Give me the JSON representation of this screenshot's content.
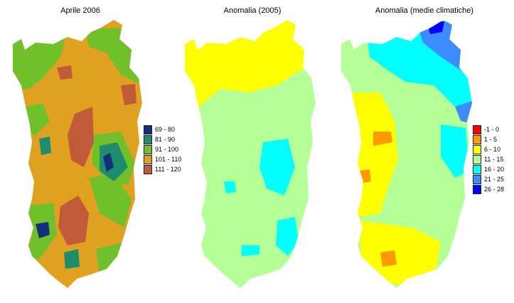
{
  "panels": [
    {
      "title": "Aprile 2006",
      "legend": [
        {
          "label": "69 - 80",
          "color": "#15307a"
        },
        {
          "label": "81 - 90",
          "color": "#1e8c6e"
        },
        {
          "label": "91 - 100",
          "color": "#6fc02a"
        },
        {
          "label": "101 - 110",
          "color": "#e0a020"
        },
        {
          "label": "111 - 120",
          "color": "#c05a38"
        }
      ]
    },
    {
      "title": "Anomalia (2005)",
      "legend": []
    },
    {
      "title": "Anomalia (medie climatiche)",
      "legend": [
        {
          "label": "-1 - 0",
          "color": "#ff0000"
        },
        {
          "label": "1 - 5",
          "color": "#ff9900"
        },
        {
          "label": "6 - 10",
          "color": "#ffff00"
        },
        {
          "label": "11 - 15",
          "color": "#b4ff96"
        },
        {
          "label": "16 - 20",
          "color": "#00ffff"
        },
        {
          "label": "21 - 25",
          "color": "#3c8cff"
        },
        {
          "label": "26 - 28",
          "color": "#0000ff"
        }
      ]
    }
  ],
  "colors": {
    "map1_base": "#e0a020",
    "map2_base": "#b4ff96",
    "map2_north": "#ffff00",
    "map2_east": "#00ffff",
    "map3_base": "#b4ff96"
  }
}
